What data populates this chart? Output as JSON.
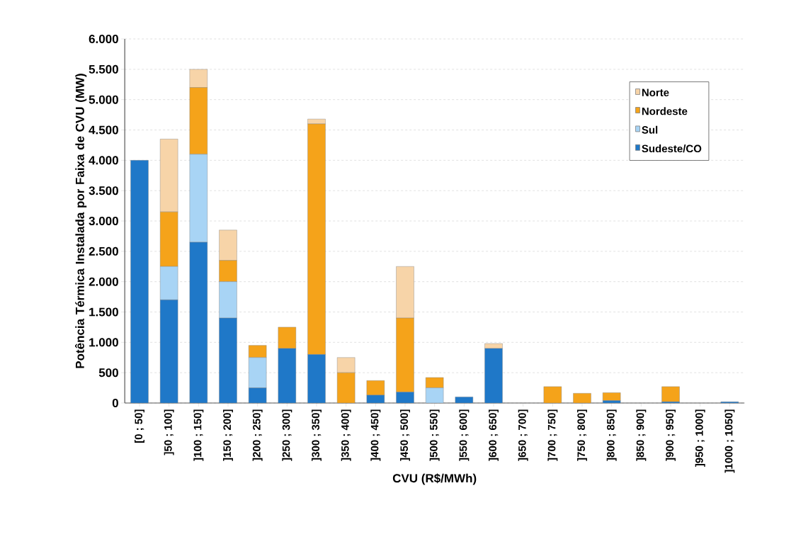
{
  "chart_data": {
    "type": "bar",
    "stacked": true,
    "xlabel": "CVU (R$/MWh)",
    "ylabel": "Potência Térmica Instalada por Faixa de CVU (MW)",
    "categories": [
      "[0 ; 50]",
      "]50 ; 100]",
      "]100 ; 150]",
      "]150 ; 200]",
      "]200 ; 250]",
      "]250 ; 300]",
      "]300 ; 350]",
      "]350 ; 400]",
      "]400 ; 450]",
      "]450 ; 500]",
      "]500 ; 550]",
      "]550 ; 600]",
      "]600 ; 650]",
      "]650 ; 700]",
      "]700 ; 750]",
      "]750 ; 800]",
      "]800 ; 850]",
      "]850 ; 900]",
      "]900 ; 950]",
      "]950 ; 1000]",
      "]1000 ; 1050]"
    ],
    "series": [
      {
        "name": "Sudeste/CO",
        "color": "#1f78c8",
        "values": [
          4000,
          1700,
          2650,
          1400,
          250,
          900,
          800,
          0,
          130,
          180,
          0,
          100,
          900,
          0,
          0,
          0,
          40,
          0,
          20,
          0,
          20
        ]
      },
      {
        "name": "Sul",
        "color": "#a8d4f5",
        "values": [
          0,
          550,
          1450,
          600,
          500,
          0,
          0,
          0,
          0,
          0,
          250,
          0,
          0,
          0,
          0,
          0,
          0,
          0,
          0,
          0,
          0
        ]
      },
      {
        "name": "Nordeste",
        "color": "#f5a31a",
        "values": [
          0,
          900,
          1100,
          350,
          200,
          350,
          3800,
          500,
          240,
          1220,
          170,
          0,
          0,
          0,
          270,
          160,
          130,
          0,
          250,
          0,
          0
        ]
      },
      {
        "name": "Norte",
        "color": "#f7d4a8",
        "values": [
          0,
          1200,
          300,
          500,
          0,
          0,
          80,
          250,
          0,
          850,
          0,
          0,
          80,
          0,
          0,
          0,
          0,
          0,
          0,
          0,
          0
        ]
      }
    ],
    "ylim": [
      0,
      6000
    ],
    "yticks": [
      0,
      500,
      {
        "value": 1000,
        "label": "1.000"
      },
      {
        "value": 1500,
        "label": "1.500"
      },
      {
        "value": 2000,
        "label": "2.000"
      },
      {
        "value": 2500,
        "label": "2.500"
      },
      {
        "value": 3000,
        "label": "3.000"
      },
      {
        "value": 3500,
        "label": "3.500"
      },
      {
        "value": 4000,
        "label": "4.000"
      },
      {
        "value": 4500,
        "label": "4.500"
      },
      {
        "value": 5000,
        "label": "5.000"
      },
      {
        "value": 5500,
        "label": "5.500"
      },
      {
        "value": 6000,
        "label": "6.000"
      }
    ],
    "grid": "y",
    "legend": "top right"
  }
}
